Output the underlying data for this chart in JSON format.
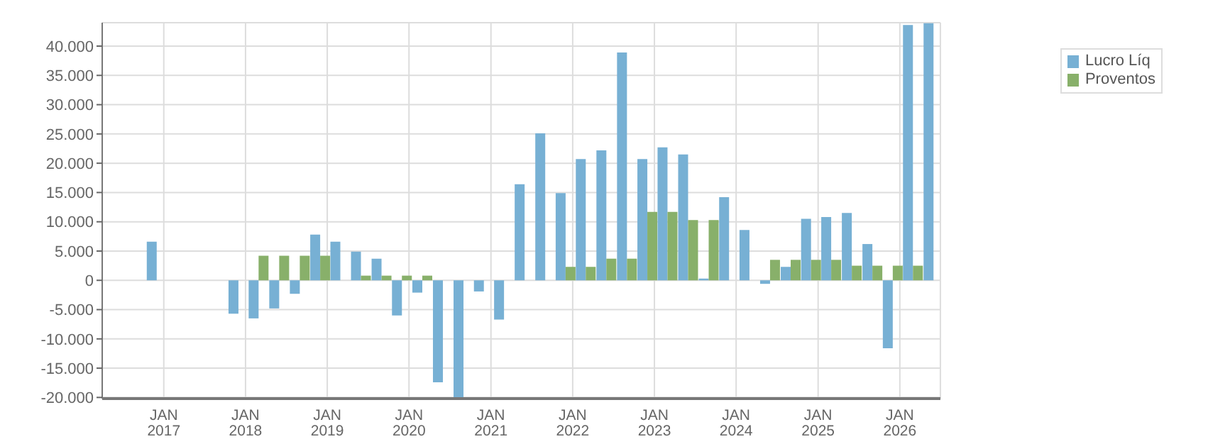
{
  "chart_data": {
    "type": "bar",
    "x": [
      "2016-12",
      "2017-03",
      "2017-06",
      "2017-09",
      "2017-12",
      "2018-03",
      "2018-06",
      "2018-09",
      "2018-12",
      "2019-03",
      "2019-06",
      "2019-09",
      "2019-12",
      "2020-03",
      "2020-06",
      "2020-09",
      "2020-12",
      "2021-03",
      "2021-06",
      "2021-09",
      "2021-12",
      "2022-03",
      "2022-06",
      "2022-09",
      "2022-12",
      "2023-03",
      "2023-06",
      "2023-09",
      "2023-12",
      "2024-03",
      "2024-06",
      "2024-09",
      "2024-12",
      "2025-03",
      "2025-06",
      "2025-09",
      "2025-12",
      "2026-03",
      "2026-06"
    ],
    "series": [
      {
        "name": "Lucro Líq",
        "color": "#77b0d4",
        "values": [
          6600,
          null,
          null,
          null,
          -5700,
          -6500,
          -4800,
          -2300,
          7800,
          6600,
          4900,
          3700,
          -6000,
          -2100,
          -17400,
          -20000,
          -1900,
          -6700,
          16400,
          25100,
          14900,
          20700,
          22200,
          38900,
          20700,
          22700,
          21500,
          300,
          14200,
          8600,
          -600,
          2300,
          10500,
          10800,
          11500,
          6200,
          -11600,
          43600,
          43900
        ]
      },
      {
        "name": "Proventos",
        "color": "#88b06a",
        "values": [
          0,
          null,
          null,
          null,
          0,
          4200,
          4200,
          4200,
          4200,
          0,
          800,
          800,
          800,
          800,
          0,
          0,
          0,
          0,
          0,
          0,
          2300,
          2300,
          3700,
          3700,
          11700,
          11700,
          10300,
          10300,
          0,
          0,
          3500,
          3500,
          3500,
          3500,
          2500,
          2500,
          2500,
          2500,
          0
        ]
      }
    ],
    "xlim": [
      "2016-04",
      "2026-07"
    ],
    "xticks": [
      {
        "value": "2017-01",
        "label": "JAN 2017"
      },
      {
        "value": "2018-01",
        "label": "JAN 2018"
      },
      {
        "value": "2019-01",
        "label": "JAN 2019"
      },
      {
        "value": "2020-01",
        "label": "JAN 2020"
      },
      {
        "value": "2021-01",
        "label": "JAN 2021"
      },
      {
        "value": "2022-01",
        "label": "JAN 2022"
      },
      {
        "value": "2023-01",
        "label": "JAN 2023"
      },
      {
        "value": "2024-01",
        "label": "JAN 2024"
      },
      {
        "value": "2025-01",
        "label": "JAN 2025"
      },
      {
        "value": "2026-01",
        "label": "JAN 2026"
      }
    ],
    "ylim": [
      -20200,
      44000
    ],
    "yticks": [
      {
        "value": -20000,
        "label": "-20.000"
      },
      {
        "value": -15000,
        "label": "-15.000"
      },
      {
        "value": -10000,
        "label": "-10.000"
      },
      {
        "value": -5000,
        "label": "-5.000"
      },
      {
        "value": 0,
        "label": "0"
      },
      {
        "value": 5000,
        "label": "5.000"
      },
      {
        "value": 10000,
        "label": "10.000"
      },
      {
        "value": 15000,
        "label": "15.000"
      },
      {
        "value": 20000,
        "label": "20.000"
      },
      {
        "value": 25000,
        "label": "25.000"
      },
      {
        "value": 30000,
        "label": "30.000"
      },
      {
        "value": 35000,
        "label": "35.000"
      },
      {
        "value": 40000,
        "label": "40.000"
      }
    ],
    "grid": true,
    "legend": "top right"
  }
}
